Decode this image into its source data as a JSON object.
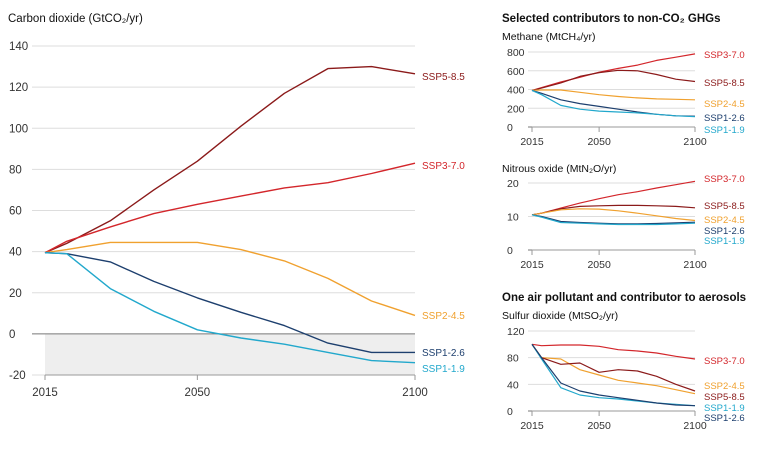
{
  "colors": {
    "SSP5-8.5": "#8b1a1a",
    "SSP3-7.0": "#d3262b",
    "SSP2-4.5": "#f0a12f",
    "SSP1-2.6": "#1d3f6e",
    "SSP1-1.9": "#22a8cc",
    "axis": "#999999",
    "grid": "#dddddd",
    "negative_band": "#eeeeee"
  },
  "section_titles": {
    "nonco2": "Selected contributors to non-CO₂ GHGs",
    "aerosol": "One air pollutant and contributor to aerosols"
  },
  "chart_data": [
    {
      "id": "co2",
      "type": "line",
      "title": "Carbon dioxide (GtCO₂/yr)",
      "xlim": [
        2015,
        2100
      ],
      "ylim": [
        -20,
        140
      ],
      "xticks": [
        "2015",
        "2050",
        "2100"
      ],
      "yticks": [
        "140",
        "120",
        "100",
        "80",
        "60",
        "40",
        "20",
        "0",
        "-20"
      ],
      "x": [
        2015,
        2020,
        2030,
        2040,
        2050,
        2060,
        2070,
        2080,
        2090,
        2100
      ],
      "series": [
        {
          "name": "SSP5-8.5",
          "values": [
            39.5,
            44,
            55,
            70,
            84,
            101,
            117,
            129,
            130,
            126.5
          ]
        },
        {
          "name": "SSP3-7.0",
          "values": [
            39.5,
            45,
            52,
            58.5,
            63,
            67,
            71,
            73.5,
            78,
            83
          ]
        },
        {
          "name": "SSP2-4.5",
          "values": [
            39.5,
            41,
            44.5,
            44.5,
            44.5,
            41,
            35.5,
            27,
            16,
            9
          ]
        },
        {
          "name": "SSP1-2.6",
          "values": [
            39.5,
            39,
            35,
            25.5,
            17.5,
            10.5,
            4,
            -4.5,
            -9,
            -9
          ]
        },
        {
          "name": "SSP1-1.9",
          "values": [
            39.5,
            39,
            22,
            11,
            2,
            -2,
            -5,
            -9,
            -13,
            -14
          ]
        }
      ]
    },
    {
      "id": "methane",
      "type": "line",
      "title": "Methane (MtCH₄/yr)",
      "xlim": [
        2015,
        2100
      ],
      "ylim": [
        0,
        800
      ],
      "xticks": [
        "2015",
        "2050",
        "2100"
      ],
      "yticks": [
        "800",
        "600",
        "400",
        "200",
        "0"
      ],
      "x": [
        2015,
        2020,
        2030,
        2040,
        2050,
        2060,
        2070,
        2080,
        2090,
        2100
      ],
      "series": [
        {
          "name": "SSP3-7.0",
          "values": [
            390,
            420,
            480,
            530,
            585,
            625,
            660,
            710,
            745,
            780
          ]
        },
        {
          "name": "SSP5-8.5",
          "values": [
            390,
            415,
            470,
            540,
            580,
            605,
            600,
            560,
            510,
            485
          ]
        },
        {
          "name": "SSP2-4.5",
          "values": [
            390,
            395,
            395,
            370,
            345,
            325,
            310,
            300,
            295,
            290
          ]
        },
        {
          "name": "SSP1-2.6",
          "values": [
            390,
            360,
            290,
            250,
            220,
            190,
            160,
            135,
            120,
            115
          ]
        },
        {
          "name": "SSP1-1.9",
          "values": [
            390,
            345,
            230,
            190,
            170,
            160,
            150,
            135,
            120,
            110
          ]
        }
      ]
    },
    {
      "id": "nitrous",
      "type": "line",
      "title": "Nitrous oxide (MtN₂O/yr)",
      "xlim": [
        2015,
        2100
      ],
      "ylim": [
        0,
        20
      ],
      "xticks": [
        "2015",
        "2050",
        "2100"
      ],
      "yticks": [
        "20",
        "10",
        "0"
      ],
      "x": [
        2015,
        2020,
        2030,
        2040,
        2050,
        2060,
        2070,
        2080,
        2090,
        2100
      ],
      "series": [
        {
          "name": "SSP3-7.0",
          "values": [
            10.5,
            11,
            12.5,
            14,
            15.3,
            16.5,
            17.4,
            18.5,
            19.5,
            20.5
          ]
        },
        {
          "name": "SSP5-8.5",
          "values": [
            10.5,
            11,
            12.3,
            13,
            13.2,
            13.3,
            13.3,
            13.2,
            13,
            12.6
          ]
        },
        {
          "name": "SSP2-4.5",
          "values": [
            10.5,
            11,
            12,
            12.3,
            12.2,
            11.7,
            11,
            10.2,
            9.4,
            8.8
          ]
        },
        {
          "name": "SSP1-2.6",
          "values": [
            10.5,
            10,
            8.5,
            8.2,
            8,
            7.8,
            7.8,
            7.9,
            8.1,
            8.3
          ]
        },
        {
          "name": "SSP1-1.9",
          "values": [
            10.5,
            9.8,
            8.2,
            8,
            7.8,
            7.6,
            7.6,
            7.6,
            7.8,
            8
          ]
        }
      ]
    },
    {
      "id": "sulfur",
      "type": "line",
      "title": "Sulfur dioxide (MtSO₂/yr)",
      "xlim": [
        2015,
        2100
      ],
      "ylim": [
        0,
        120
      ],
      "xticks": [
        "2015",
        "2050",
        "2100"
      ],
      "yticks": [
        "120",
        "80",
        "40",
        "0"
      ],
      "x": [
        2015,
        2020,
        2030,
        2040,
        2050,
        2060,
        2070,
        2080,
        2090,
        2100
      ],
      "series": [
        {
          "name": "SSP3-7.0",
          "values": [
            100,
            98,
            99,
            99,
            97,
            92,
            90,
            87,
            82,
            78
          ]
        },
        {
          "name": "SSP2-4.5",
          "values": [
            100,
            80,
            78,
            62,
            54,
            46,
            42,
            38,
            32,
            26
          ]
        },
        {
          "name": "SSP5-8.5",
          "values": [
            100,
            80,
            70,
            72,
            58,
            62,
            60,
            52,
            40,
            30
          ]
        },
        {
          "name": "SSP1-1.9",
          "values": [
            100,
            78,
            35,
            24,
            20,
            18,
            15,
            12,
            10,
            8
          ]
        },
        {
          "name": "SSP1-2.6",
          "values": [
            100,
            80,
            42,
            30,
            24,
            20,
            16,
            12,
            9,
            8
          ]
        }
      ]
    }
  ]
}
